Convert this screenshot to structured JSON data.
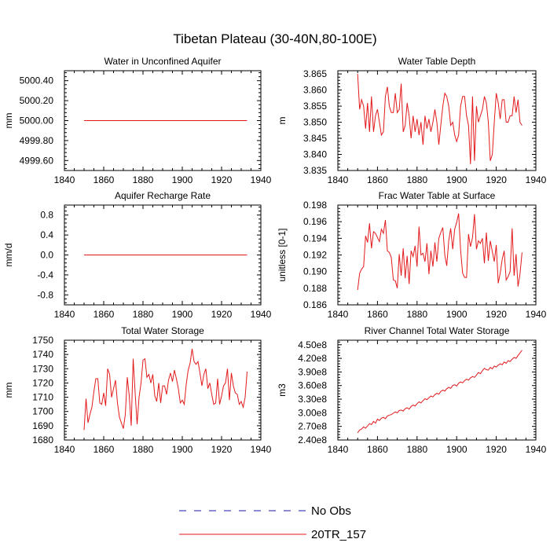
{
  "title": "Tibetan Plateau (30-40N,80-100E)",
  "legend": {
    "entries": [
      {
        "label": "No Obs",
        "color": "#1a1aa6",
        "style": "dashed"
      },
      {
        "label": "20TR_157",
        "color": "#e31a1c",
        "style": "solid"
      }
    ]
  },
  "chart_data": [
    {
      "type": "line",
      "title": "Water in Unconfined Aquifer",
      "xlabel": "",
      "ylabel": "mm",
      "xlim": [
        1840,
        1940
      ],
      "ylim": [
        4999.5,
        5000.5
      ],
      "xticks": [
        1840,
        1860,
        1880,
        1900,
        1920,
        1940
      ],
      "yticks": [
        4999.6,
        4999.8,
        5000.0,
        5000.2,
        5000.4
      ],
      "yticklabels": [
        "4999.60",
        "4999.80",
        "5000.00",
        "5000.20",
        "5000.40"
      ],
      "series": [
        {
          "name": "20TR_157",
          "color": "#e31a1c",
          "x": [
            1850,
            1933
          ],
          "values": [
            5000.0,
            5000.0
          ]
        }
      ]
    },
    {
      "type": "line",
      "title": "Water Table Depth",
      "xlabel": "",
      "ylabel": "m",
      "xlim": [
        1840,
        1940
      ],
      "ylim": [
        3.835,
        3.866
      ],
      "xticks": [
        1840,
        1860,
        1880,
        1900,
        1920,
        1940
      ],
      "yticks": [
        3.835,
        3.84,
        3.845,
        3.85,
        3.855,
        3.86,
        3.865
      ],
      "yticklabels": [
        "3.835",
        "3.840",
        "3.845",
        "3.850",
        "3.855",
        "3.860",
        "3.865"
      ],
      "series": [
        {
          "name": "20TR_157",
          "color": "#e31a1c",
          "x_start": 1850,
          "x_step": 1,
          "values": [
            3.865,
            3.854,
            3.857,
            3.855,
            3.848,
            3.856,
            3.847,
            3.858,
            3.847,
            3.852,
            3.854,
            3.85,
            3.846,
            3.847,
            3.858,
            3.861,
            3.855,
            3.853,
            3.853,
            3.859,
            3.853,
            3.854,
            3.862,
            3.847,
            3.849,
            3.856,
            3.852,
            3.845,
            3.852,
            3.847,
            3.851,
            3.846,
            3.85,
            3.843,
            3.852,
            3.848,
            3.851,
            3.847,
            3.85,
            3.854,
            3.85,
            3.843,
            3.849,
            3.855,
            3.859,
            3.858,
            3.855,
            3.849,
            3.85,
            3.846,
            3.844,
            3.846,
            3.855,
            3.858,
            3.858,
            3.852,
            3.849,
            3.837,
            3.858,
            3.838,
            3.855,
            3.85,
            3.852,
            3.854,
            3.858,
            3.856,
            3.85,
            3.838,
            3.84,
            3.85,
            3.859,
            3.856,
            3.851,
            3.857,
            3.857,
            3.85,
            3.85,
            3.852,
            3.852,
            3.858,
            3.853,
            3.857,
            3.85,
            3.849
          ]
        }
      ]
    },
    {
      "type": "line",
      "title": "Aquifer Recharge Rate",
      "xlabel": "",
      "ylabel": "mm/d",
      "xlim": [
        1840,
        1940
      ],
      "ylim": [
        -1.0,
        1.0
      ],
      "xticks": [
        1840,
        1860,
        1880,
        1900,
        1920,
        1940
      ],
      "yticks": [
        -0.8,
        -0.4,
        0.0,
        0.4,
        0.8
      ],
      "yticklabels": [
        "-0.8",
        "-0.4",
        "0.0",
        "0.4",
        "0.8"
      ],
      "series": [
        {
          "name": "20TR_157",
          "color": "#e31a1c",
          "x": [
            1850,
            1933
          ],
          "values": [
            0.0,
            0.0
          ]
        }
      ]
    },
    {
      "type": "line",
      "title": "Frac Water Table at Surface",
      "xlabel": "",
      "ylabel": "unitless [0-1]",
      "xlim": [
        1840,
        1940
      ],
      "ylim": [
        0.186,
        0.198
      ],
      "xticks": [
        1840,
        1860,
        1880,
        1900,
        1920,
        1940
      ],
      "yticks": [
        0.186,
        0.188,
        0.19,
        0.192,
        0.194,
        0.196,
        0.198
      ],
      "yticklabels": [
        "0.186",
        "0.188",
        "0.190",
        "0.192",
        "0.194",
        "0.196",
        "0.198"
      ],
      "series": [
        {
          "name": "20TR_157",
          "color": "#e31a1c",
          "x_start": 1850,
          "x_step": 1,
          "values": [
            0.1878,
            0.1898,
            0.1903,
            0.1906,
            0.1943,
            0.1935,
            0.1958,
            0.1928,
            0.1948,
            0.1946,
            0.1941,
            0.1936,
            0.1951,
            0.1946,
            0.1962,
            0.1925,
            0.1923,
            0.1917,
            0.189,
            0.1889,
            0.188,
            0.1921,
            0.1895,
            0.1928,
            0.1892,
            0.1919,
            0.1885,
            0.1925,
            0.1918,
            0.1931,
            0.1906,
            0.1954,
            0.192,
            0.1922,
            0.1912,
            0.1934,
            0.1897,
            0.1925,
            0.1906,
            0.1935,
            0.1912,
            0.194,
            0.1947,
            0.1953,
            0.192,
            0.1907,
            0.1937,
            0.1952,
            0.1927,
            0.1951,
            0.1959,
            0.197,
            0.1926,
            0.1898,
            0.1893,
            0.1893,
            0.1945,
            0.193,
            0.1941,
            0.1969,
            0.1927,
            0.1937,
            0.1934,
            0.194,
            0.191,
            0.1947,
            0.1913,
            0.1937,
            0.1924,
            0.1912,
            0.1932,
            0.1886,
            0.1898,
            0.1915,
            0.1925,
            0.189,
            0.1894,
            0.19,
            0.1952,
            0.1895,
            0.1921,
            0.1882,
            0.1897,
            0.1923
          ]
        }
      ]
    },
    {
      "type": "line",
      "title": "Total Water Storage",
      "xlabel": "",
      "ylabel": "mm",
      "xlim": [
        1840,
        1940
      ],
      "ylim": [
        1680,
        1750
      ],
      "xticks": [
        1840,
        1860,
        1880,
        1900,
        1920,
        1940
      ],
      "yticks": [
        1680,
        1690,
        1700,
        1710,
        1720,
        1730,
        1740,
        1750
      ],
      "yticklabels": [
        "1680",
        "1690",
        "1700",
        "1710",
        "1720",
        "1730",
        "1740",
        "1750"
      ],
      "series": [
        {
          "name": "20TR_157",
          "color": "#e31a1c",
          "x_start": 1850,
          "x_step": 1,
          "values": [
            1687,
            1709,
            1692,
            1698,
            1703,
            1714,
            1723,
            1723,
            1706,
            1705,
            1713,
            1704,
            1730,
            1726,
            1710,
            1716,
            1722,
            1706,
            1696,
            1692,
            1688,
            1698,
            1724,
            1711,
            1690,
            1737,
            1713,
            1691,
            1710,
            1720,
            1736,
            1737,
            1724,
            1726,
            1720,
            1726,
            1711,
            1707,
            1720,
            1706,
            1718,
            1718,
            1712,
            1722,
            1727,
            1721,
            1729,
            1723,
            1716,
            1706,
            1708,
            1705,
            1719,
            1729,
            1734,
            1744,
            1735,
            1733,
            1735,
            1727,
            1718,
            1726,
            1730,
            1716,
            1720,
            1712,
            1705,
            1706,
            1723,
            1705,
            1711,
            1718,
            1720,
            1730,
            1708,
            1727,
            1718,
            1713,
            1712,
            1705,
            1707,
            1703,
            1710,
            1728
          ]
        }
      ]
    },
    {
      "type": "line",
      "title": "River Channel Total Water Storage",
      "xlabel": "",
      "ylabel": "m3",
      "xlim": [
        1840,
        1940
      ],
      "ylim": [
        240000000,
        460000000
      ],
      "xticks": [
        1840,
        1860,
        1880,
        1900,
        1920,
        1940
      ],
      "yticks": [
        240000000,
        270000000,
        300000000,
        330000000,
        360000000,
        390000000,
        420000000,
        450000000
      ],
      "yticklabels": [
        "2.40e8",
        "2.70e8",
        "3.00e8",
        "3.30e8",
        "3.60e8",
        "3.90e8",
        "4.20e8",
        "4.50e8"
      ],
      "series": [
        {
          "name": "20TR_157",
          "color": "#e31a1c",
          "x_start": 1850,
          "x_step": 1,
          "values": [
            256000000,
            262000000,
            264000000,
            269000000,
            266000000,
            271000000,
            276000000,
            274000000,
            281000000,
            277000000,
            286000000,
            283000000,
            288000000,
            290000000,
            287000000,
            293000000,
            295000000,
            296000000,
            299000000,
            302000000,
            300000000,
            305000000,
            306000000,
            304000000,
            309000000,
            311000000,
            308000000,
            314000000,
            317000000,
            315000000,
            320000000,
            324000000,
            322000000,
            327000000,
            331000000,
            329000000,
            333000000,
            337000000,
            335000000,
            340000000,
            343000000,
            341000000,
            347000000,
            350000000,
            348000000,
            353000000,
            356000000,
            354000000,
            360000000,
            362000000,
            359000000,
            365000000,
            368000000,
            366000000,
            371000000,
            374000000,
            372000000,
            377000000,
            380000000,
            378000000,
            383000000,
            389000000,
            386000000,
            393000000,
            398000000,
            395000000,
            394000000,
            400000000,
            397000000,
            403000000,
            401000000,
            405000000,
            408000000,
            406000000,
            412000000,
            409000000,
            415000000,
            413000000,
            418000000,
            422000000,
            420000000,
            426000000,
            432000000,
            438000000
          ]
        }
      ]
    }
  ]
}
